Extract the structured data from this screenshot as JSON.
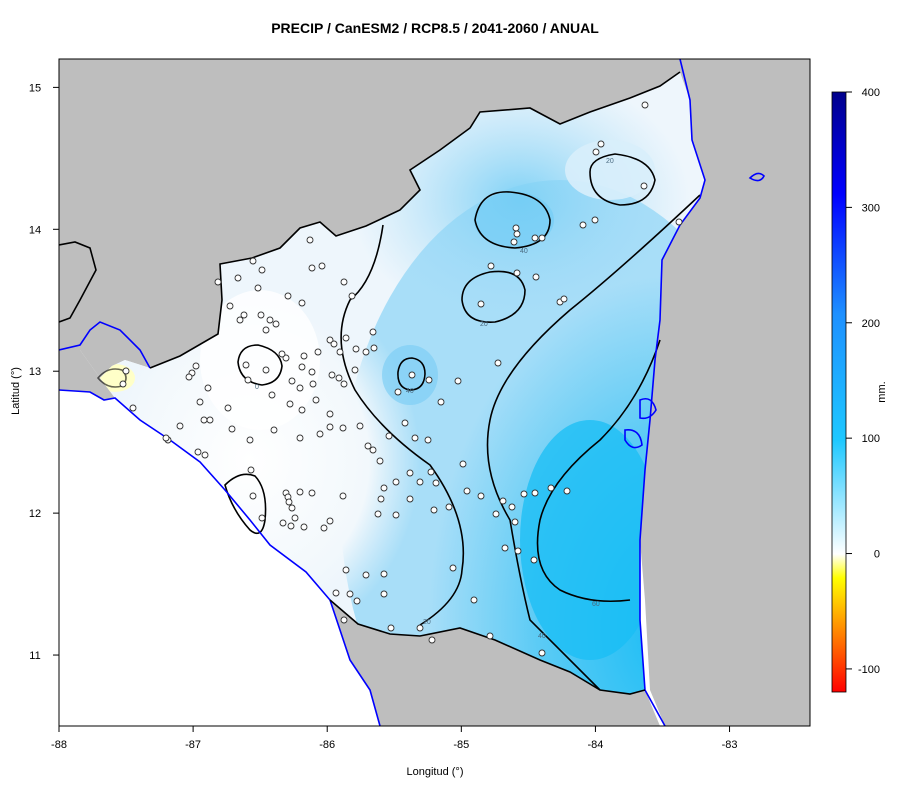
{
  "title": "PRECIP / CanESM2 / RCP8.5 / 2041-2060 / ANUAL",
  "x_axis": {
    "label": "Longitud (°)",
    "ticks": [
      {
        "value": -88,
        "label": "-88"
      },
      {
        "value": -87,
        "label": "-87"
      },
      {
        "value": -86,
        "label": "-86"
      },
      {
        "value": -85,
        "label": "-85"
      },
      {
        "value": -84,
        "label": "-84"
      },
      {
        "value": -83,
        "label": "-83"
      }
    ]
  },
  "y_axis": {
    "label": "Latitud (°)",
    "ticks": [
      {
        "value": 11,
        "label": "11"
      },
      {
        "value": 12,
        "label": "12"
      },
      {
        "value": 13,
        "label": "13"
      },
      {
        "value": 14,
        "label": "14"
      },
      {
        "value": 15,
        "label": "15"
      }
    ]
  },
  "colorbar": {
    "unit": "mm.",
    "range": [
      -120,
      400
    ],
    "ticks": [
      {
        "value": -100,
        "label": "-100"
      },
      {
        "value": 0,
        "label": "0"
      },
      {
        "value": 100,
        "label": "100"
      },
      {
        "value": 200,
        "label": "200"
      },
      {
        "value": 300,
        "label": "300"
      },
      {
        "value": 400,
        "label": "400"
      }
    ],
    "colors": [
      "#ff0000",
      "#ffa500",
      "#ffff00",
      "#ffffff",
      "#1ec8ff",
      "#0000ff",
      "#00008b"
    ]
  },
  "contours": [
    {
      "label": "0"
    },
    {
      "label": "20"
    },
    {
      "label": "40"
    },
    {
      "label": "60"
    }
  ],
  "colors": {
    "land_outside": "#bebebe",
    "coastline": "#0000ff",
    "border": "#000000",
    "station_fill": "#ffffff",
    "station_stroke": "#333333"
  }
}
